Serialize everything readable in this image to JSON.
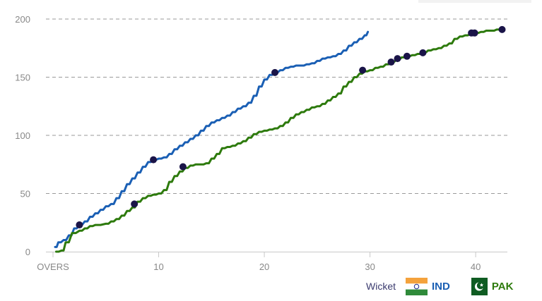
{
  "chart_data": {
    "type": "line",
    "x_axis_first_label": "OVERS",
    "xlim": [
      0,
      43
    ],
    "ylim": [
      0,
      200
    ],
    "x_ticks": [
      10,
      20,
      30,
      40
    ],
    "y_ticks": [
      0,
      50,
      100,
      150,
      200
    ],
    "grid": "horizontal-dashed",
    "series": [
      {
        "name": "IND",
        "color": "#1a5fb4",
        "x": [
          0.2,
          0.5,
          1.0,
          1.5,
          2.0,
          2.5,
          3.0,
          3.5,
          4.0,
          4.5,
          5.0,
          5.5,
          6.0,
          6.5,
          7.0,
          7.5,
          8.0,
          8.5,
          9.0,
          9.5,
          10.0,
          10.5,
          11.0,
          11.5,
          12.0,
          12.5,
          13.0,
          13.5,
          14.0,
          14.5,
          15.0,
          15.5,
          16.0,
          16.5,
          17.0,
          17.5,
          18.0,
          18.5,
          19.0,
          19.5,
          20.0,
          20.5,
          21.0,
          21.5,
          22.0,
          22.5,
          23.0,
          23.5,
          24.0,
          24.5,
          25.0,
          25.5,
          26.0,
          26.5,
          27.0,
          27.5,
          28.0,
          28.5,
          29.0,
          29.5,
          29.8
        ],
        "values": [
          4,
          8,
          10,
          14,
          20,
          23,
          26,
          30,
          33,
          36,
          39,
          41,
          46,
          52,
          58,
          63,
          68,
          73,
          77,
          79,
          80,
          81,
          84,
          88,
          91,
          94,
          97,
          100,
          104,
          108,
          111,
          113,
          115,
          117,
          120,
          123,
          125,
          128,
          134,
          142,
          148,
          152,
          154,
          156,
          158,
          159,
          160,
          160,
          161,
          162,
          164,
          166,
          167,
          168,
          170,
          173,
          177,
          180,
          183,
          186,
          189
        ]
      },
      {
        "name": "PAK",
        "color": "#2d7a0c",
        "x": [
          0.3,
          0.8,
          1.2,
          1.8,
          2.5,
          3.0,
          3.5,
          4.0,
          5.0,
          5.5,
          6.0,
          6.5,
          7.0,
          7.5,
          8.0,
          8.5,
          9.0,
          9.5,
          10.0,
          10.5,
          11.0,
          11.5,
          12.0,
          12.5,
          13.0,
          13.5,
          14.0,
          14.5,
          15.0,
          15.5,
          16.0,
          16.5,
          17.0,
          17.5,
          18.0,
          18.5,
          19.0,
          19.5,
          20.0,
          20.5,
          21.0,
          21.5,
          22.0,
          22.5,
          23.0,
          23.5,
          24.0,
          24.5,
          25.0,
          25.5,
          26.0,
          26.5,
          27.0,
          27.5,
          28.0,
          28.5,
          29.0,
          29.5,
          30.0,
          30.5,
          31.0,
          31.5,
          32.0,
          32.5,
          33.0,
          33.5,
          34.0,
          34.5,
          35.0,
          35.5,
          36.0,
          36.5,
          37.0,
          37.5,
          38.0,
          38.5,
          39.0,
          39.5,
          40.0,
          40.5,
          41.0,
          41.5,
          42.0,
          42.5
        ],
        "values": [
          0,
          1,
          8,
          16,
          18,
          20,
          22,
          23,
          24,
          26,
          28,
          31,
          35,
          38,
          43,
          46,
          48,
          49,
          50,
          53,
          60,
          65,
          69,
          72,
          74,
          75,
          75,
          76,
          80,
          84,
          89,
          90,
          91,
          93,
          95,
          98,
          101,
          103,
          104,
          105,
          106,
          108,
          111,
          115,
          118,
          120,
          122,
          124,
          125,
          127,
          130,
          133,
          136,
          142,
          146,
          150,
          153,
          155,
          156,
          158,
          159,
          161,
          163,
          165,
          167,
          168,
          169,
          170,
          171,
          173,
          174,
          175,
          177,
          179,
          183,
          185,
          186,
          187,
          188,
          189,
          190,
          190,
          191,
          191
        ]
      }
    ],
    "wickets": [
      {
        "series": "IND",
        "x": [
          2.5,
          9.5,
          21.0
        ],
        "values": [
          23,
          79,
          154
        ]
      },
      {
        "series": "PAK",
        "x": [
          7.7,
          12.3,
          29.3,
          32.0,
          32.6,
          33.5,
          35.0,
          39.6,
          39.9,
          42.5
        ],
        "values": [
          41,
          73,
          156,
          163,
          166,
          168,
          171,
          188,
          188,
          191
        ]
      }
    ],
    "wicket_marker_color": "#1a1448"
  },
  "legend": {
    "wicket_label": "Wicket",
    "ind_label": "IND",
    "pak_label": "PAK",
    "ind_color": "#1a5fb4",
    "pak_color": "#2d7a0c"
  }
}
